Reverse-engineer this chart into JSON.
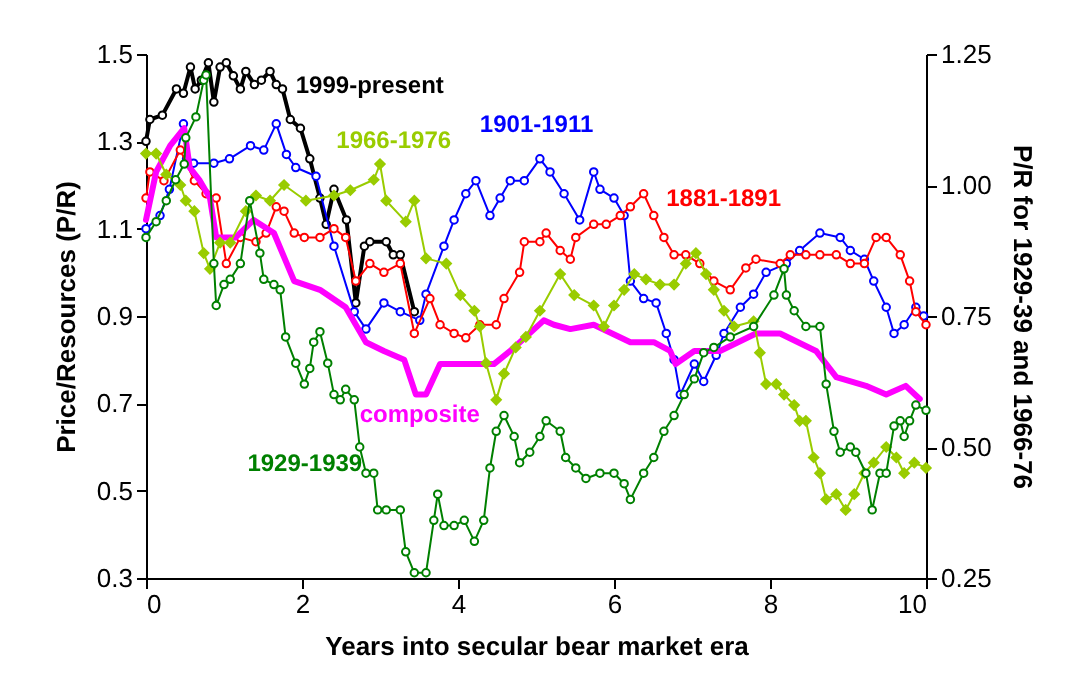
{
  "chart_data": {
    "type": "line",
    "xlabel": "Years into secular bear market era",
    "ylabel": "Price/Resources (P/R)",
    "y2label": "P/R for 1929-39 and 1966-76",
    "xlim": [
      0,
      10
    ],
    "xticks": [
      0,
      2,
      4,
      6,
      8,
      10
    ],
    "ylim": [
      0.3,
      1.5
    ],
    "yticks": [
      0.3,
      0.5,
      0.7,
      0.9,
      1.1,
      1.3,
      1.5
    ],
    "y2lim": [
      0.25,
      1.25
    ],
    "y2ticks": [
      {
        "value": 0.25,
        "label": "0.25"
      },
      {
        "value": 0.5,
        "label": "0.50"
      },
      {
        "value": 0.75,
        "label": "0.75"
      },
      {
        "value": 1,
        "label": "1.00"
      },
      {
        "value": 1.25,
        "label": "1.25"
      }
    ],
    "grid": false,
    "line_style": "solid",
    "series": [
      {
        "name": "1999-present",
        "color": "#000000",
        "marker": "circle",
        "x": [
          0,
          0.05,
          0.21,
          0.39,
          0.48,
          0.57,
          0.63,
          0.71,
          0.8,
          0.87,
          0.95,
          1.03,
          1.12,
          1.21,
          1.28,
          1.39,
          1.48,
          1.59,
          1.67,
          1.75,
          1.85,
          1.98,
          2.1,
          2.23,
          2.31,
          2.41,
          2.57,
          2.69,
          2.8,
          2.87,
          3.08,
          3.17,
          3.26,
          3.44
        ],
        "values": [
          1.3,
          1.35,
          1.36,
          1.42,
          1.41,
          1.47,
          1.42,
          1.44,
          1.48,
          1.39,
          1.47,
          1.48,
          1.45,
          1.42,
          1.46,
          1.43,
          1.44,
          1.46,
          1.43,
          1.42,
          1.35,
          1.33,
          1.26,
          1.17,
          1.11,
          1.19,
          1.12,
          0.93,
          1.06,
          1.07,
          1.07,
          1.04,
          1.04,
          0.91
        ]
      },
      {
        "name": "1901-1911",
        "color": "#0000ff",
        "marker": "circle",
        "x": [
          0,
          0.18,
          0.3,
          0.48,
          0.52,
          0.61,
          0.87,
          1.07,
          1.34,
          1.51,
          1.67,
          1.8,
          1.92,
          2.18,
          2.41,
          2.67,
          2.82,
          3.05,
          3.26,
          3.51,
          3.59,
          3.82,
          3.95,
          4.1,
          4.23,
          4.41,
          4.54,
          4.67,
          4.85,
          5.05,
          5.18,
          5.36,
          5.56,
          5.74,
          5.82,
          6.0,
          6.13,
          6.21,
          6.38,
          6.54,
          6.67,
          6.77,
          6.85,
          7.03,
          7.15,
          7.31,
          7.41,
          7.62,
          7.79,
          7.95,
          8.21,
          8.38,
          8.64,
          8.9,
          9.03,
          9.21,
          9.33,
          9.49,
          9.59,
          9.72,
          9.87,
          9.97
        ],
        "values": [
          1.1,
          1.13,
          1.19,
          1.34,
          1.26,
          1.25,
          1.25,
          1.26,
          1.29,
          1.28,
          1.34,
          1.27,
          1.24,
          1.22,
          1.06,
          0.91,
          0.87,
          0.93,
          0.91,
          0.89,
          0.95,
          1.06,
          1.12,
          1.18,
          1.21,
          1.13,
          1.17,
          1.21,
          1.21,
          1.26,
          1.23,
          1.18,
          1.12,
          1.23,
          1.19,
          1.17,
          1.13,
          0.98,
          0.94,
          0.93,
          0.86,
          0.8,
          0.72,
          0.79,
          0.75,
          0.81,
          0.86,
          0.92,
          0.95,
          1.0,
          1.02,
          1.05,
          1.09,
          1.08,
          1.05,
          1.03,
          0.98,
          0.92,
          0.86,
          0.88,
          0.92,
          0.9
        ]
      },
      {
        "name": "1881-1891",
        "color": "#ff0000",
        "marker": "circle",
        "x": [
          0,
          0.05,
          0.23,
          0.44,
          0.62,
          0.77,
          0.9,
          1.03,
          1.21,
          1.41,
          1.54,
          1.67,
          1.77,
          1.9,
          2.03,
          2.23,
          2.41,
          2.56,
          2.69,
          2.87,
          3.05,
          3.26,
          3.44,
          3.64,
          3.77,
          3.95,
          4.1,
          4.28,
          4.49,
          4.59,
          4.79,
          4.85,
          5.05,
          5.13,
          5.31,
          5.44,
          5.51,
          5.74,
          5.9,
          6.08,
          6.21,
          6.38,
          6.51,
          6.64,
          6.77,
          6.92,
          7.1,
          7.28,
          7.49,
          7.69,
          7.82,
          8.13,
          8.26,
          8.46,
          8.64,
          8.85,
          9.03,
          9.21,
          9.36,
          9.49,
          9.67,
          9.79,
          9.87,
          10
        ],
        "values": [
          1.17,
          1.23,
          1.21,
          1.28,
          1.21,
          1.18,
          1.17,
          1.02,
          1.08,
          1.07,
          1.09,
          1.15,
          1.14,
          1.09,
          1.08,
          1.08,
          1.1,
          1.08,
          0.98,
          1.02,
          1.0,
          1.02,
          0.86,
          0.94,
          0.88,
          0.86,
          0.85,
          0.88,
          0.88,
          0.94,
          1.0,
          1.07,
          1.07,
          1.09,
          1.05,
          1.03,
          1.08,
          1.11,
          1.11,
          1.13,
          1.15,
          1.18,
          1.13,
          1.08,
          1.04,
          1.04,
          1.02,
          0.98,
          0.96,
          1.01,
          1.03,
          1.02,
          1.04,
          1.04,
          1.04,
          1.04,
          1.02,
          1.02,
          1.08,
          1.08,
          1.04,
          0.98,
          0.91,
          0.88
        ]
      },
      {
        "name": "composite",
        "color": "#ff00ff",
        "marker": "none",
        "x": [
          0,
          0.13,
          0.31,
          0.49,
          0.56,
          0.69,
          0.82,
          0.9,
          1.15,
          1.38,
          1.64,
          1.9,
          2.23,
          2.56,
          2.82,
          3.05,
          3.31,
          3.46,
          3.59,
          3.77,
          3.95,
          4.46,
          4.67,
          5.1,
          5.23,
          5.44,
          5.74,
          6.21,
          6.51,
          6.72,
          6.79,
          7.03,
          7.36,
          7.82,
          8.13,
          8.59,
          8.85,
          9.23,
          9.49,
          9.74,
          9.92
        ],
        "values": [
          1.12,
          1.23,
          1.29,
          1.33,
          1.24,
          1.21,
          1.17,
          1.08,
          1.08,
          1.12,
          1.09,
          0.98,
          0.96,
          0.92,
          0.84,
          0.82,
          0.8,
          0.72,
          0.72,
          0.79,
          0.79,
          0.79,
          0.82,
          0.89,
          0.88,
          0.87,
          0.88,
          0.84,
          0.84,
          0.82,
          0.79,
          0.82,
          0.82,
          0.86,
          0.86,
          0.82,
          0.76,
          0.74,
          0.72,
          0.74,
          0.71
        ]
      },
      {
        "name": "1966-1976",
        "color": "#99cc00",
        "marker": "diamond",
        "axis": "y2",
        "x": [
          0,
          0.13,
          0.26,
          0.44,
          0.51,
          0.62,
          0.74,
          0.82,
          0.95,
          1.08,
          1.28,
          1.41,
          1.59,
          1.77,
          2.05,
          2.41,
          2.62,
          2.92,
          3.0,
          3.08,
          3.33,
          3.44,
          3.59,
          3.85,
          4.03,
          4.21,
          4.28,
          4.36,
          4.49,
          4.59,
          4.74,
          4.87,
          5.05,
          5.31,
          5.49,
          5.74,
          5.87,
          6.0,
          6.13,
          6.26,
          6.41,
          6.59,
          6.77,
          6.92,
          7.05,
          7.18,
          7.28,
          7.41,
          7.54,
          7.79,
          7.87,
          7.95,
          8.08,
          8.18,
          8.31,
          8.38,
          8.46,
          8.56,
          8.64,
          8.72,
          8.85,
          8.97,
          9.08,
          9.21,
          9.33,
          9.49,
          9.62,
          9.72,
          9.85,
          10
        ],
        "values": [
          1.06,
          1.06,
          1.02,
          1.0,
          0.97,
          0.95,
          0.87,
          0.84,
          0.89,
          0.89,
          0.95,
          0.98,
          0.97,
          1.0,
          0.97,
          0.98,
          0.99,
          1.01,
          1.04,
          0.97,
          0.93,
          0.97,
          0.86,
          0.85,
          0.79,
          0.76,
          0.73,
          0.66,
          0.59,
          0.64,
          0.69,
          0.71,
          0.76,
          0.83,
          0.79,
          0.77,
          0.73,
          0.77,
          0.8,
          0.83,
          0.82,
          0.81,
          0.81,
          0.85,
          0.87,
          0.83,
          0.8,
          0.76,
          0.73,
          0.74,
          0.68,
          0.62,
          0.62,
          0.6,
          0.58,
          0.55,
          0.55,
          0.48,
          0.45,
          0.4,
          0.41,
          0.38,
          0.41,
          0.45,
          0.47,
          0.5,
          0.48,
          0.45,
          0.47,
          0.46
        ]
      },
      {
        "name": "1929-1939",
        "color": "#008000",
        "marker": "circle",
        "axis": "y2",
        "x": [
          0,
          0.13,
          0.26,
          0.38,
          0.49,
          0.51,
          0.64,
          0.74,
          0.77,
          0.87,
          0.9,
          1.0,
          1.08,
          1.21,
          1.33,
          1.46,
          1.51,
          1.64,
          1.72,
          1.79,
          1.92,
          2.03,
          2.1,
          2.15,
          2.23,
          2.33,
          2.41,
          2.49,
          2.56,
          2.67,
          2.74,
          2.82,
          2.92,
          2.97,
          3.08,
          3.26,
          3.33,
          3.44,
          3.59,
          3.69,
          3.74,
          3.82,
          3.95,
          4.08,
          4.21,
          4.33,
          4.41,
          4.49,
          4.59,
          4.72,
          4.79,
          4.92,
          5.05,
          5.13,
          5.31,
          5.38,
          5.51,
          5.64,
          5.82,
          6.0,
          6.13,
          6.21,
          6.38,
          6.51,
          6.64,
          6.77,
          6.9,
          7.03,
          7.15,
          7.28,
          7.49,
          7.79,
          8.05,
          8.18,
          8.21,
          8.31,
          8.46,
          8.64,
          8.72,
          8.82,
          8.9,
          9.03,
          9.1,
          9.23,
          9.31,
          9.41,
          9.49,
          9.59,
          9.67,
          9.72,
          9.79,
          9.87,
          10
        ],
        "values": [
          0.9,
          0.93,
          0.97,
          1.01,
          1.04,
          1.09,
          1.13,
          1.2,
          1.21,
          0.85,
          0.77,
          0.81,
          0.82,
          0.85,
          0.97,
          0.87,
          0.82,
          0.81,
          0.8,
          0.71,
          0.66,
          0.62,
          0.65,
          0.7,
          0.72,
          0.66,
          0.6,
          0.59,
          0.61,
          0.59,
          0.5,
          0.45,
          0.45,
          0.38,
          0.38,
          0.38,
          0.3,
          0.26,
          0.26,
          0.36,
          0.41,
          0.35,
          0.35,
          0.36,
          0.32,
          0.36,
          0.46,
          0.53,
          0.56,
          0.52,
          0.47,
          0.49,
          0.52,
          0.55,
          0.53,
          0.48,
          0.46,
          0.44,
          0.45,
          0.45,
          0.43,
          0.4,
          0.45,
          0.48,
          0.53,
          0.56,
          0.6,
          0.63,
          0.68,
          0.69,
          0.71,
          0.73,
          0.79,
          0.84,
          0.79,
          0.76,
          0.73,
          0.73,
          0.62,
          0.53,
          0.49,
          0.5,
          0.49,
          0.45,
          0.38,
          0.45,
          0.45,
          0.54,
          0.55,
          0.52,
          0.55,
          0.58,
          0.57
        ]
      }
    ]
  }
}
